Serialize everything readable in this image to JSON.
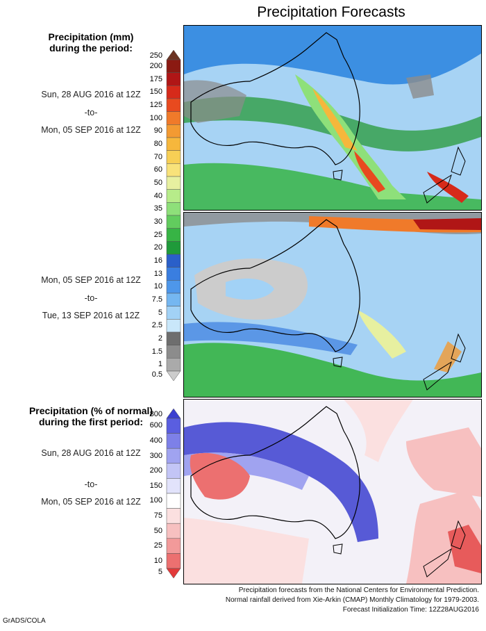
{
  "title": "Precipitation Forecasts",
  "precip_heading": [
    "Precipitation (mm)",
    "during the period:"
  ],
  "period1": {
    "from": "Sun, 28 AUG 2016 at 12Z",
    "sep": "-to-",
    "to": "Mon, 05 SEP 2016 at 12Z"
  },
  "period2": {
    "from": "Mon, 05 SEP 2016 at 12Z",
    "sep": "-to-",
    "to": "Tue, 13 SEP 2016 at 12Z"
  },
  "precip_legend": {
    "labels": [
      "250",
      "200",
      "175",
      "150",
      "125",
      "100",
      "90",
      "80",
      "70",
      "60",
      "50",
      "40",
      "35",
      "30",
      "25",
      "20",
      "16",
      "13",
      "10",
      "7.5",
      "5",
      "2.5",
      "2",
      "1.5",
      "1",
      "0.5"
    ],
    "colors": [
      "#6b3322",
      "#8b1a12",
      "#b01616",
      "#d62a1a",
      "#e84a1f",
      "#f07a2a",
      "#f39a32",
      "#f6b73c",
      "#f7cf55",
      "#f8e27a",
      "#e7f0a0",
      "#b7ec8a",
      "#8ee07a",
      "#62cc5e",
      "#37b445",
      "#1f9a3a",
      "#2a5fc9",
      "#3a7ee0",
      "#4e97ea",
      "#75b7f1",
      "#a2d2f6",
      "#c9e7fa",
      "#6e6e6e",
      "#8c8c8c",
      "#aaaaaa",
      "#cccccc"
    ]
  },
  "pct_heading": [
    "Precipitation (% of normal)",
    "during the first period:"
  ],
  "pct_period": {
    "from": "Sun, 28 AUG 2016 at 12Z",
    "sep": "-to-",
    "to": "Mon, 05 SEP 2016 at 12Z"
  },
  "pct_legend": {
    "labels": [
      "800",
      "600",
      "400",
      "300",
      "200",
      "150",
      "100",
      "75",
      "50",
      "25",
      "10",
      "5"
    ],
    "colors": [
      "#3b3fd0",
      "#5a5ee0",
      "#7d80e8",
      "#a0a3f0",
      "#c3c5f6",
      "#e2e3fb",
      "#ffffff",
      "#fbe0e0",
      "#f7c0c0",
      "#f29a9a",
      "#ec7070",
      "#e23a3a"
    ]
  },
  "footer": [
    "Precipitation forecasts from the National Centers for Environmental Prediction.",
    "Normal rainfall derived from Xie-Arkin (CMAP) Monthly Climatology for 1979-2003.",
    "Forecast Initialization Time: 12Z28AUG2016"
  ],
  "credit": "GrADS/COLA"
}
